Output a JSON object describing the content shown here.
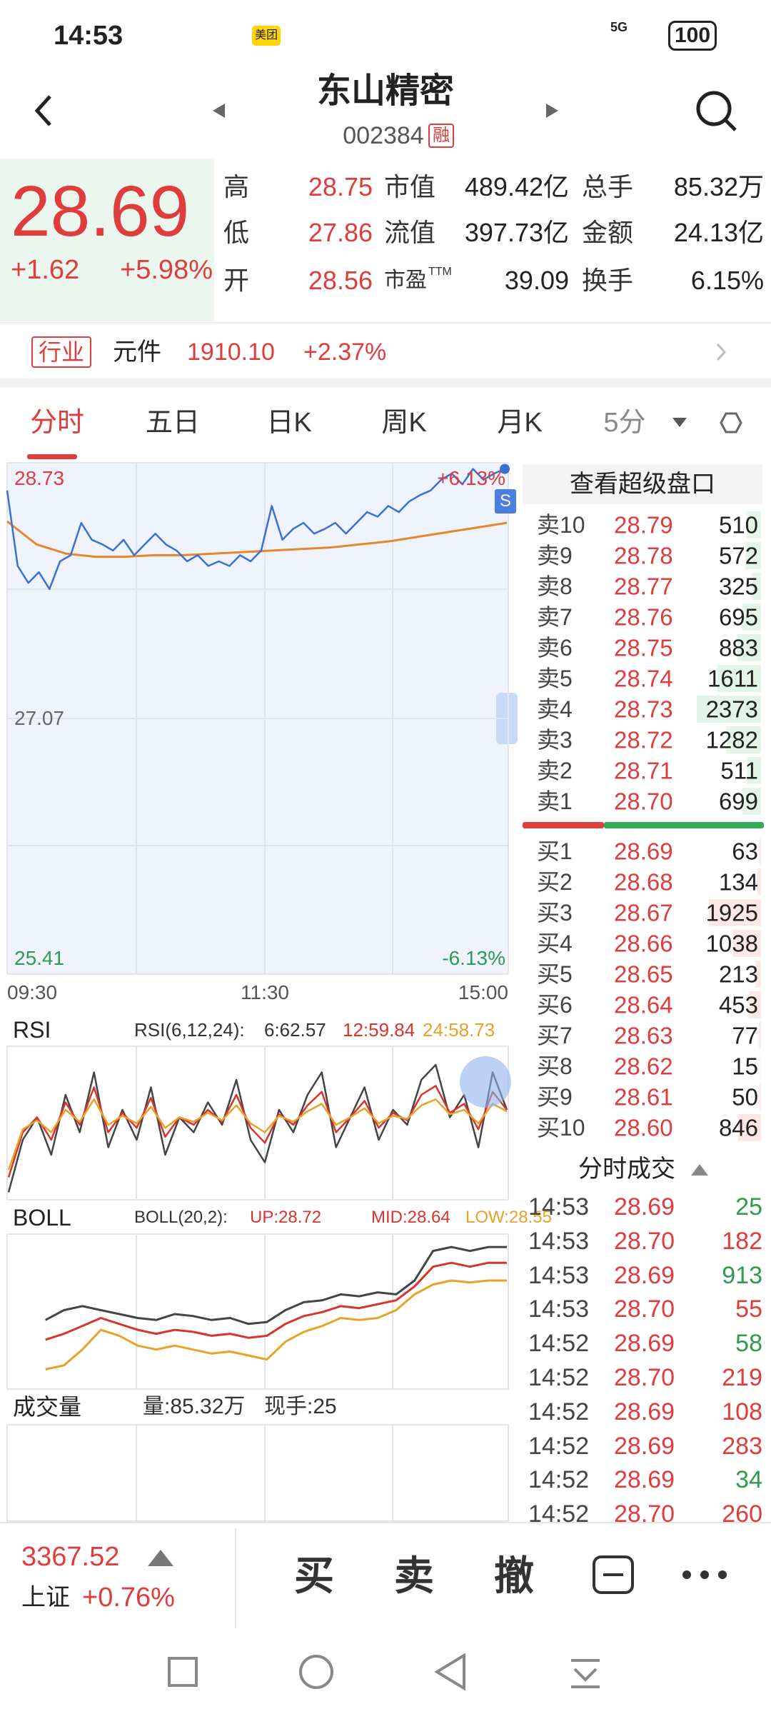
{
  "status_bar": {
    "time": "14:53",
    "app_badge": "美团",
    "network": "5G",
    "battery": "100"
  },
  "header": {
    "title": "东山精密",
    "code": "002384",
    "badge": "融"
  },
  "quote": {
    "price": "28.69",
    "change": "+1.62",
    "change_pct": "+5.98%",
    "ttm": "TTM",
    "stats": [
      [
        "高",
        "28.75",
        "市值",
        "489.42亿",
        "总手",
        "85.32万"
      ],
      [
        "低",
        "27.86",
        "流值",
        "397.73亿",
        "金额",
        "24.13亿"
      ],
      [
        "开",
        "28.56",
        "市盈",
        "39.09",
        "换手",
        "6.15%"
      ]
    ]
  },
  "industry": {
    "label": "行业",
    "name": "元件",
    "value": "1910.10",
    "change_pct": "+2.37%"
  },
  "tabs": [
    "分时",
    "五日",
    "日K",
    "周K",
    "月K",
    "5分"
  ],
  "intraday": {
    "ylim": [
      25.41,
      28.73
    ],
    "yticks": [
      28.73,
      27.07,
      25.41
    ],
    "pct_labels": [
      "+6.13%",
      "-6.13%"
    ],
    "xticks": [
      "09:30",
      "11:30",
      "15:00"
    ],
    "badge": "S",
    "price_color": "#3b6fd6",
    "avg_color": "#e8862a",
    "price": [
      28.55,
      28.06,
      27.95,
      28.02,
      27.91,
      28.09,
      28.13,
      28.34,
      28.23,
      28.2,
      28.16,
      28.23,
      28.13,
      28.2,
      28.27,
      28.2,
      28.16,
      28.09,
      28.13,
      28.06,
      28.09,
      28.06,
      28.13,
      28.09,
      28.16,
      28.45,
      28.23,
      28.3,
      28.34,
      28.27,
      28.3,
      28.34,
      28.27,
      28.34,
      28.41,
      28.38,
      28.45,
      28.41,
      28.48,
      28.52,
      28.55,
      28.62,
      28.66,
      28.59,
      28.69,
      28.62,
      28.66,
      28.69
    ],
    "avg": [
      28.35,
      28.2,
      28.14,
      28.12,
      28.12,
      28.13,
      28.13,
      28.14,
      28.15,
      28.16,
      28.17,
      28.18,
      28.2,
      28.22,
      28.25,
      28.28,
      28.31,
      28.34
    ]
  },
  "order_book": {
    "title": "查看超级盘口",
    "asks": [
      [
        "卖10",
        "28.79",
        "510"
      ],
      [
        "卖9",
        "28.78",
        "572"
      ],
      [
        "卖8",
        "28.77",
        "325"
      ],
      [
        "卖7",
        "28.76",
        "695"
      ],
      [
        "卖6",
        "28.75",
        "883"
      ],
      [
        "卖5",
        "28.74",
        "1611"
      ],
      [
        "卖4",
        "28.73",
        "2373"
      ],
      [
        "卖3",
        "28.72",
        "1282"
      ],
      [
        "卖2",
        "28.71",
        "511"
      ],
      [
        "卖1",
        "28.70",
        "699"
      ]
    ],
    "bids": [
      [
        "买1",
        "28.69",
        "63"
      ],
      [
        "买2",
        "28.68",
        "134"
      ],
      [
        "买3",
        "28.67",
        "1925"
      ],
      [
        "买4",
        "28.66",
        "1038"
      ],
      [
        "买5",
        "28.65",
        "213"
      ],
      [
        "买6",
        "28.64",
        "453"
      ],
      [
        "买7",
        "28.63",
        "77"
      ],
      [
        "买8",
        "28.62",
        "15"
      ],
      [
        "买9",
        "28.61",
        "50"
      ],
      [
        "买10",
        "28.60",
        "846"
      ]
    ]
  },
  "rsi": {
    "label": "RSI",
    "params": "RSI(6,12,24):",
    "values_text": [
      "6:62.57",
      "12:59.84",
      "24:58.73"
    ],
    "ylim": [
      0,
      100
    ],
    "series": [
      {
        "color": "#444444",
        "values": [
          5,
          40,
          55,
          30,
          70,
          45,
          85,
          35,
          60,
          40,
          75,
          30,
          55,
          45,
          65,
          50,
          80,
          40,
          25,
          60,
          45,
          70,
          85,
          35,
          55,
          75,
          40,
          60,
          50,
          80,
          90,
          55,
          70,
          35,
          85,
          60
        ]
      },
      {
        "color": "#d9342b",
        "values": [
          15,
          45,
          55,
          40,
          65,
          50,
          75,
          45,
          58,
          48,
          68,
          42,
          55,
          50,
          60,
          52,
          70,
          48,
          38,
          57,
          50,
          63,
          72,
          45,
          55,
          66,
          48,
          58,
          53,
          70,
          76,
          58,
          64,
          47,
          72,
          60
        ]
      },
      {
        "color": "#e8a22a",
        "values": [
          20,
          47,
          53,
          45,
          60,
          52,
          67,
          50,
          56,
          51,
          62,
          48,
          55,
          52,
          58,
          53,
          63,
          51,
          45,
          56,
          52,
          59,
          64,
          50,
          55,
          61,
          51,
          56,
          54,
          63,
          67,
          57,
          60,
          51,
          64,
          59
        ]
      }
    ]
  },
  "boll": {
    "label": "BOLL",
    "params": "BOLL(20,2):",
    "values_text": [
      "UP:28.72",
      "MID:28.64",
      "LOW:28.55"
    ],
    "ylim": [
      28.0,
      28.76
    ],
    "series": [
      {
        "color": "#444444",
        "values": [
          null,
          null,
          28.35,
          28.4,
          28.42,
          28.4,
          28.38,
          28.36,
          28.35,
          28.38,
          28.37,
          28.35,
          28.36,
          28.33,
          28.34,
          28.4,
          28.44,
          28.45,
          28.48,
          28.47,
          28.49,
          28.48,
          28.55,
          28.7,
          28.72,
          28.7,
          28.72,
          28.72
        ]
      },
      {
        "color": "#d9342b",
        "values": [
          null,
          null,
          28.25,
          28.28,
          28.32,
          28.36,
          28.33,
          28.3,
          28.28,
          28.3,
          28.29,
          28.27,
          28.28,
          28.26,
          28.27,
          28.33,
          28.37,
          28.39,
          28.42,
          28.41,
          28.43,
          28.45,
          28.52,
          28.62,
          28.64,
          28.62,
          28.64,
          28.64
        ]
      },
      {
        "color": "#e8a22a",
        "values": [
          null,
          null,
          28.1,
          28.12,
          28.2,
          28.3,
          28.27,
          28.22,
          28.2,
          28.22,
          28.2,
          28.18,
          28.19,
          28.17,
          28.15,
          28.24,
          28.29,
          28.32,
          28.36,
          28.35,
          28.36,
          28.4,
          28.48,
          28.53,
          28.55,
          28.54,
          28.55,
          28.55
        ]
      }
    ]
  },
  "volume": {
    "label": "成交量",
    "total": "量:85.32万",
    "current": "现手:25"
  },
  "trades": {
    "title": "分时成交",
    "rows": [
      [
        "14:53",
        "28.69",
        "25"
      ],
      [
        "14:53",
        "28.70",
        "182"
      ],
      [
        "14:53",
        "28.69",
        "913"
      ],
      [
        "14:53",
        "28.70",
        "55"
      ],
      [
        "14:52",
        "28.69",
        "58"
      ],
      [
        "14:52",
        "28.70",
        "219"
      ],
      [
        "14:52",
        "28.69",
        "108"
      ],
      [
        "14:52",
        "28.69",
        "283"
      ],
      [
        "14:52",
        "28.69",
        "34"
      ],
      [
        "14:52",
        "28.70",
        "260"
      ]
    ],
    "volume_colors": [
      "#2e9b4f",
      "#e03c3c",
      "#2e9b4f",
      "#e03c3c",
      "#2e9b4f",
      "#e03c3c",
      "#e03c3c",
      "#e03c3c",
      "#2e9b4f",
      "#e03c3c"
    ]
  },
  "bottom": {
    "index_value": "3367.52",
    "index_name": "上证",
    "index_change": "+0.76%",
    "buttons": [
      "买",
      "卖",
      "撤"
    ]
  }
}
